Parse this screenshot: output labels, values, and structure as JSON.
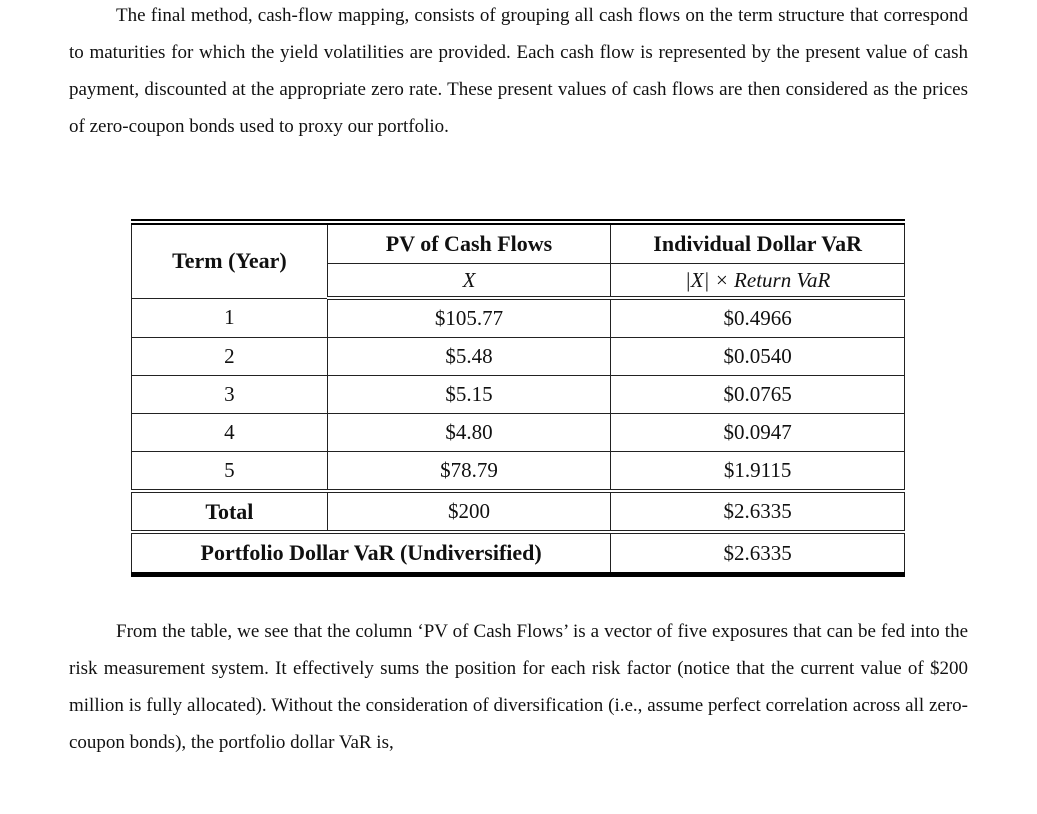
{
  "paragraph1": "The final method, cash-flow mapping, consists of grouping all cash flows on the term structure that correspond to maturities for which the yield volatilities are provided. Each cash flow is represented by the present value of cash payment, discounted at the appropriate zero rate. These present values of cash flows are then considered as the prices of zero-coupon bonds used to proxy our portfolio.",
  "table": {
    "headers": {
      "term": "Term (Year)",
      "pv": "PV of Cash Flows",
      "pv_sub": "X",
      "var": "Individual Dollar VaR",
      "var_sub": "|X| × Return VaR"
    },
    "rows": [
      {
        "term": "1",
        "pv": "$105.77",
        "var": "$0.4966"
      },
      {
        "term": "2",
        "pv": "$5.48",
        "var": "$0.0540"
      },
      {
        "term": "3",
        "pv": "$5.15",
        "var": "$0.0765"
      },
      {
        "term": "4",
        "pv": "$4.80",
        "var": "$0.0947"
      },
      {
        "term": "5",
        "pv": "$78.79",
        "var": "$1.9115"
      }
    ],
    "total": {
      "label": "Total",
      "pv": "$200",
      "var": "$2.6335"
    },
    "portfolio": {
      "label": "Portfolio Dollar VaR (Undiversified)",
      "var": "$2.6335"
    }
  },
  "paragraph2": "From the table, we see that the column ‘PV of Cash Flows’ is a vector of five exposures that can be fed into the risk measurement system. It effectively sums the position for each risk factor (notice that the current value of $200 million is fully allocated). Without the consideration of diversification (i.e., assume perfect correlation across all zero-coupon bonds), the portfolio dollar VaR is,"
}
